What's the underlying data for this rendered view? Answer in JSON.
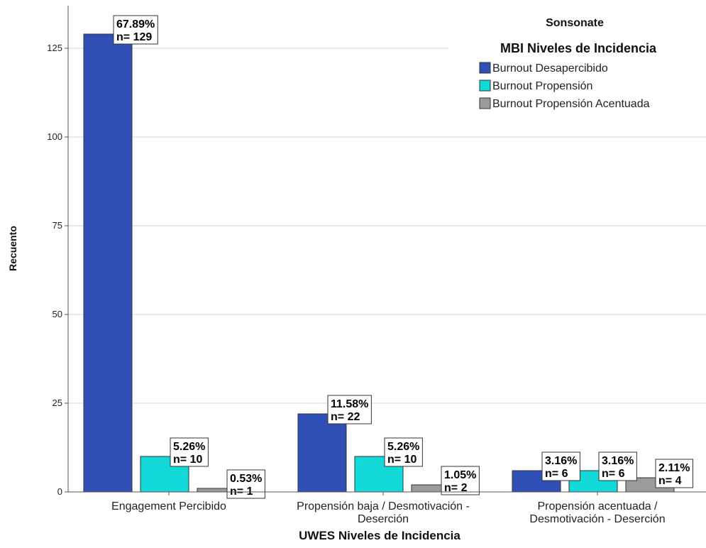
{
  "chart_data": {
    "type": "bar",
    "categories": [
      [
        "Engagement Percibido"
      ],
      [
        "Propensión baja / Desmotivación -",
        "Deserción"
      ],
      [
        "Propensión acentuada /",
        "Desmotivación - Deserción"
      ]
    ],
    "series": [
      {
        "name": "Burnout Desapercibido",
        "values": [
          129,
          22,
          6
        ],
        "labels": [
          [
            "67.89%",
            "n= 129"
          ],
          [
            "11.58%",
            "n= 22"
          ],
          [
            "3.16%",
            "n= 6"
          ]
        ]
      },
      {
        "name": "Burnout Propensión",
        "values": [
          10,
          10,
          6
        ],
        "labels": [
          [
            "5.26%",
            "n= 10"
          ],
          [
            "5.26%",
            "n= 10"
          ],
          [
            "3.16%",
            "n= 6"
          ]
        ]
      },
      {
        "name": "Burnout Propensión Acentuada",
        "values": [
          1,
          2,
          4
        ],
        "labels": [
          [
            "0.53%",
            "n= 1"
          ],
          [
            "1.05%",
            "n= 2"
          ],
          [
            "2.11%",
            "n= 4"
          ]
        ]
      }
    ],
    "xlabel": "UWES Niveles de Incidencia",
    "ylabel": "Recuento",
    "ylim": [
      0,
      137
    ],
    "yticks": [
      0,
      25,
      50,
      75,
      100,
      125
    ],
    "grid": true,
    "legend_position": "top-right",
    "legend_title": "MBI Niveles de Incidencia",
    "panel_title": "Sonsonate",
    "colors": [
      "#3150b5",
      "#12d8d8",
      "#9c9a9b"
    ]
  }
}
